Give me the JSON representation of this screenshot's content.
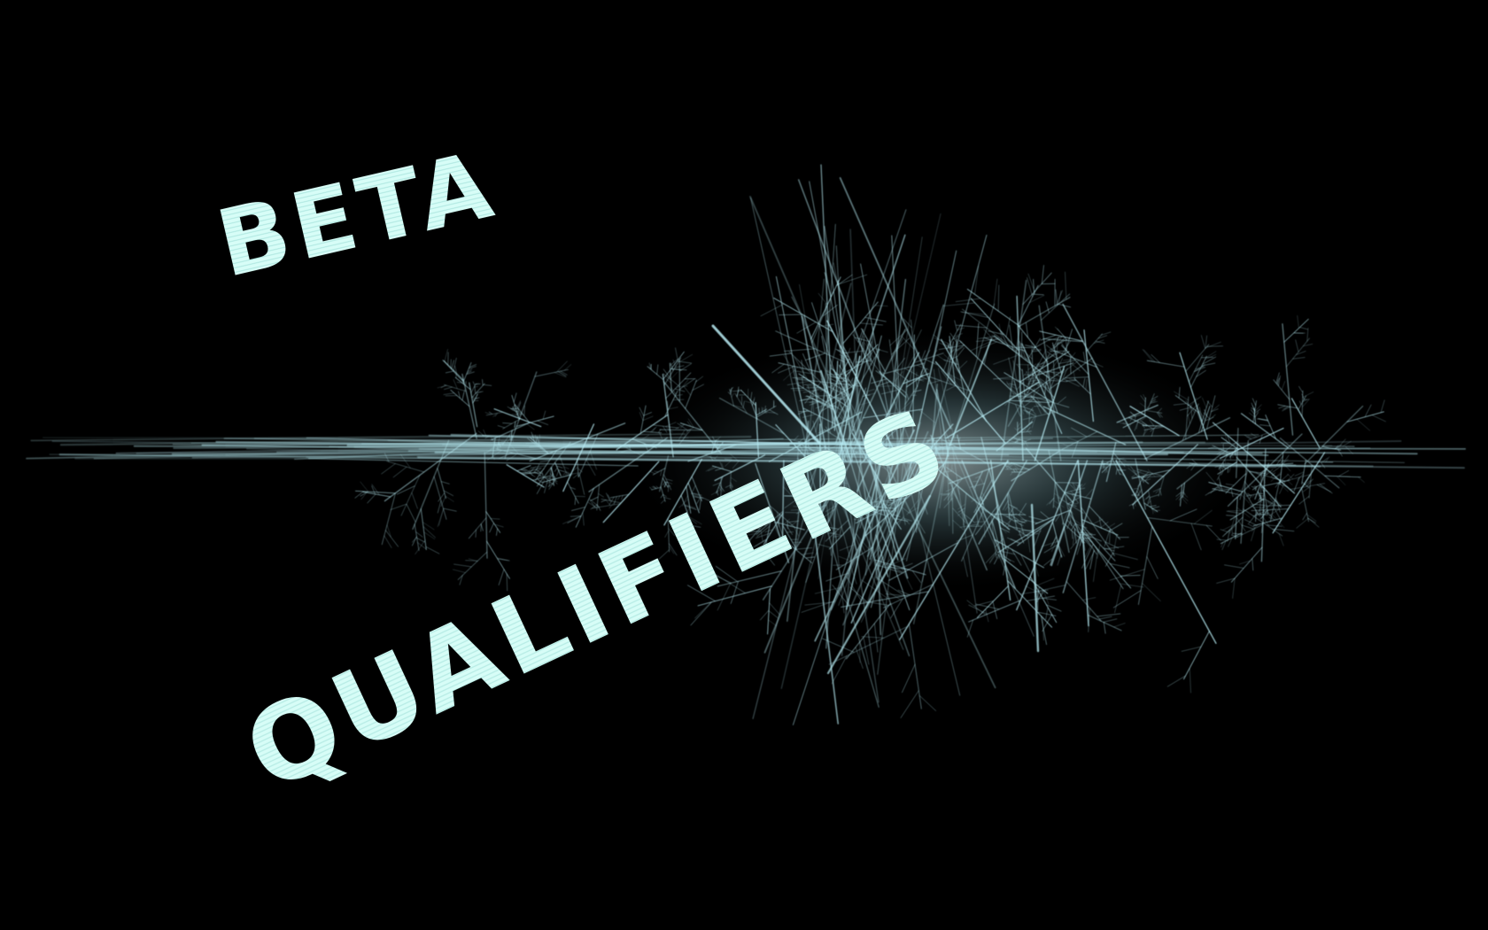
{
  "wallpaper": {
    "background_color": "#000000",
    "text_color": "#dffcf6",
    "spark_color": "#b8ecf4",
    "words": {
      "line1": "BETA",
      "line2": "QUALIFIERS"
    },
    "graphic": "ice-crystal-fractal"
  }
}
